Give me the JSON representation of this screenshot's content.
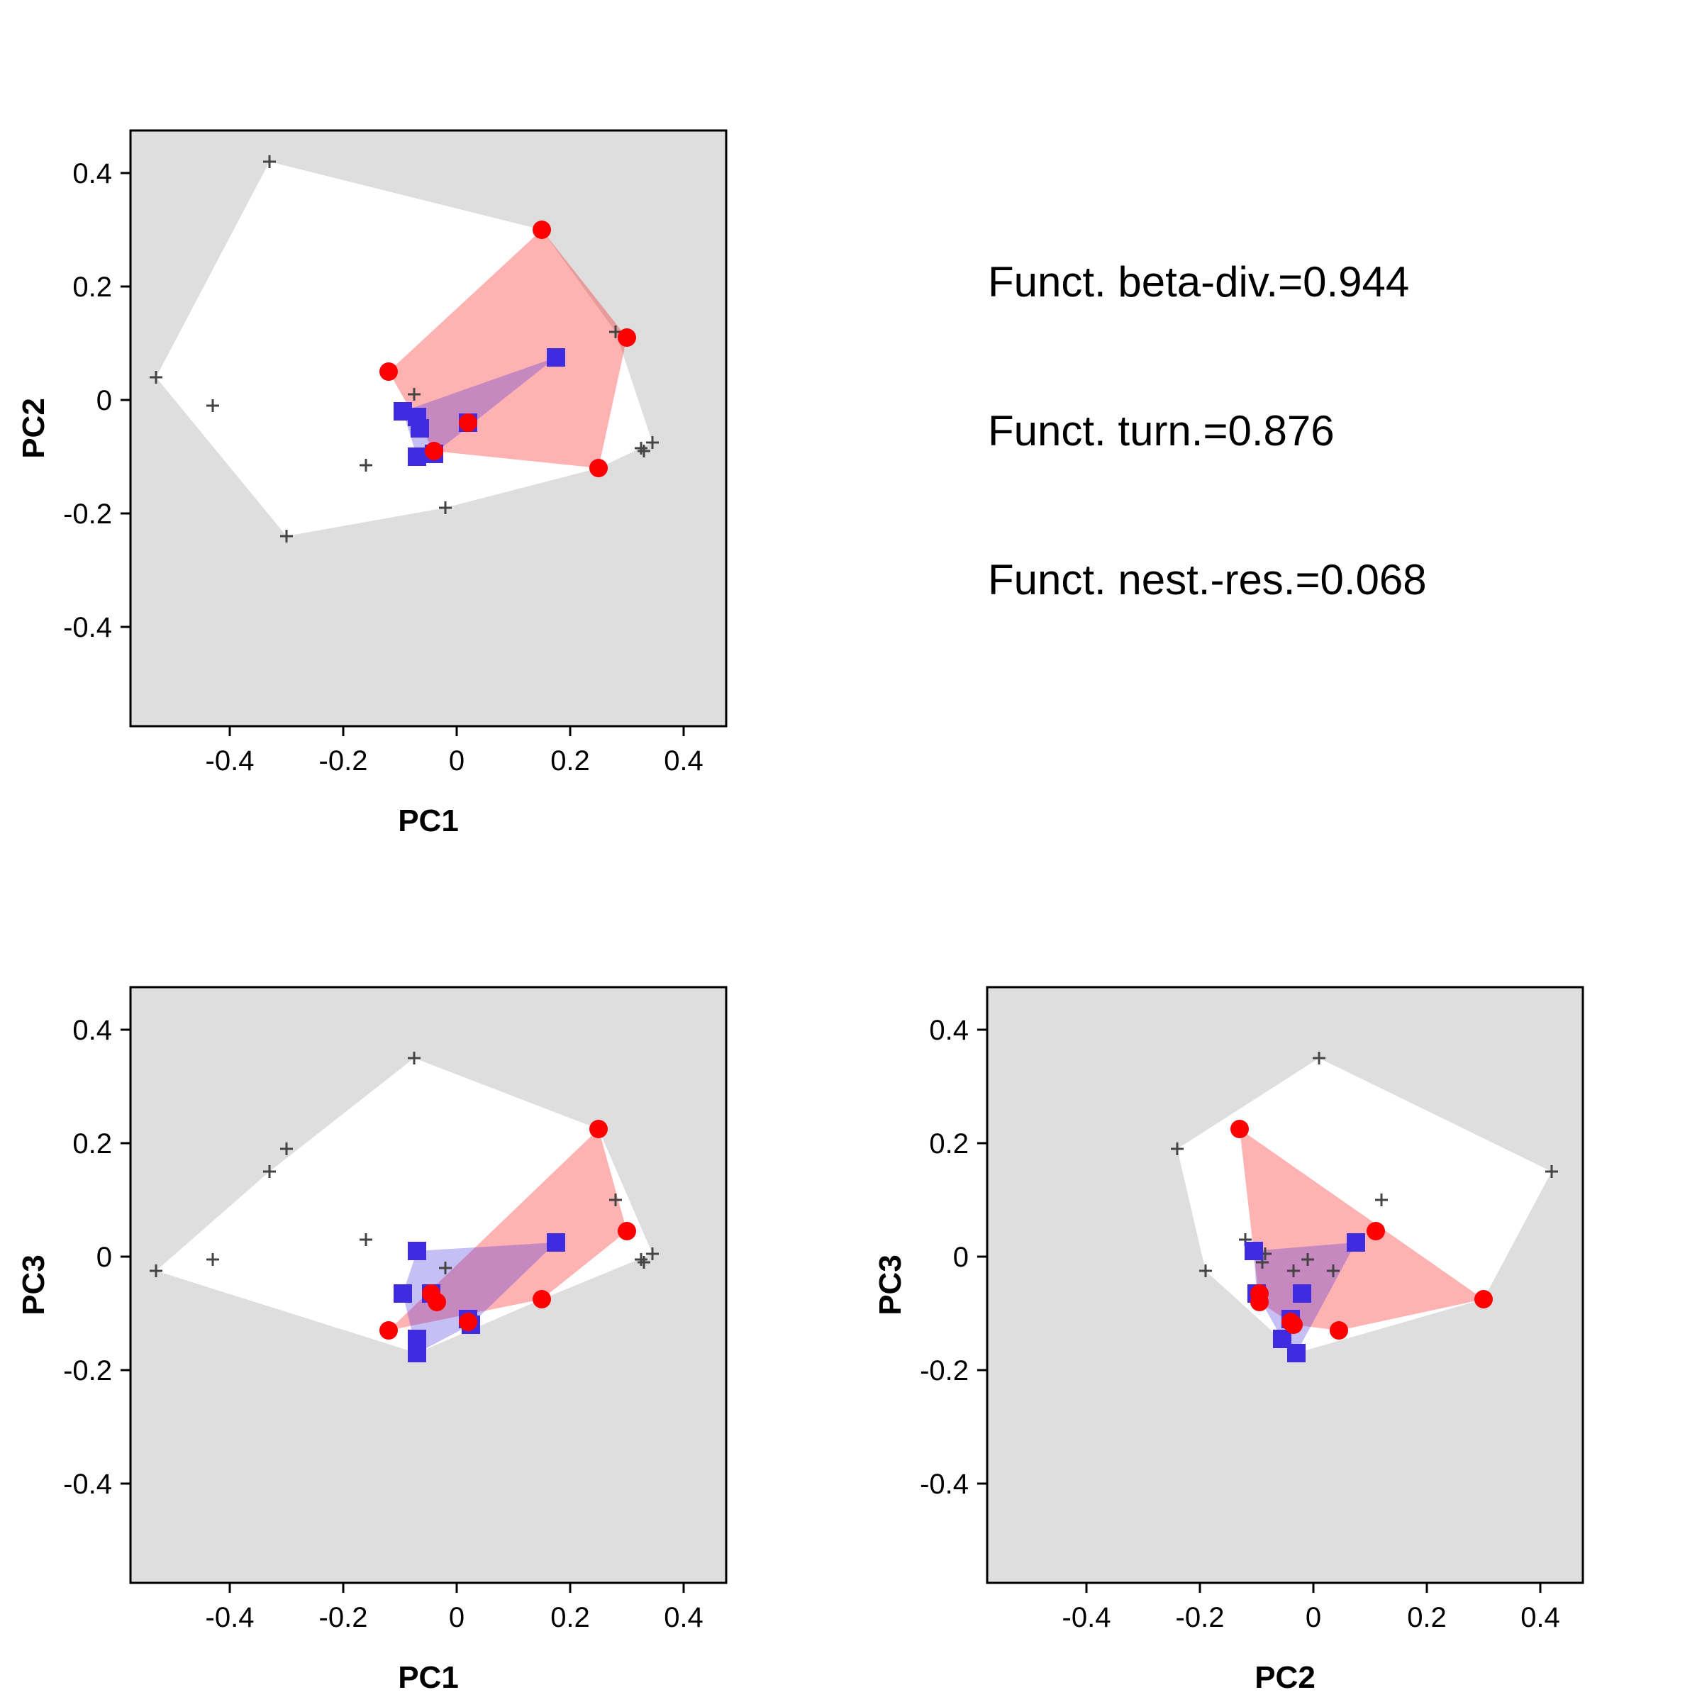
{
  "colors": {
    "panel_background": "#dedede",
    "global_hull": "#ffffff",
    "community_1": "#ff0000",
    "community_1_hull": "#f9a3a5",
    "community_2": "#3f2be0",
    "community_2_hull": "#b4b2f2",
    "overlap_hull": "#c2729b",
    "species_marker": "#444444"
  },
  "stats": {
    "beta_div": "Funct. beta-div.=0.944",
    "turnover": "Funct. turn.=0.876",
    "nestedness": "Funct. nest.-res.=0.068"
  },
  "chart_data": [
    {
      "type": "scatter",
      "xlabel": "PC1",
      "ylabel": "PC2",
      "xlim": [
        -0.575,
        0.475
      ],
      "ylim": [
        -0.575,
        0.475
      ],
      "xticks": [
        -0.4,
        -0.2,
        0,
        0.2,
        0.4
      ],
      "yticks": [
        -0.4,
        -0.2,
        0,
        0.2,
        0.4
      ],
      "tick_labels": [
        "-0.4",
        "-0.2",
        "0",
        "0.2",
        "0.4"
      ],
      "species": [
        [
          -0.33,
          0.42
        ],
        [
          -0.53,
          0.04
        ],
        [
          -0.43,
          -0.01
        ],
        [
          -0.3,
          -0.24
        ],
        [
          -0.16,
          -0.115
        ],
        [
          -0.02,
          -0.19
        ],
        [
          -0.075,
          0.01
        ],
        [
          0.28,
          0.12
        ],
        [
          0.325,
          -0.085
        ],
        [
          0.33,
          -0.09
        ],
        [
          0.345,
          -0.075
        ],
        [
          0.15,
          0.3
        ],
        [
          0.3,
          0.11
        ],
        [
          0.25,
          -0.12
        ]
      ],
      "global_hull": [
        [
          -0.33,
          0.42
        ],
        [
          0.15,
          0.3
        ],
        [
          0.28,
          0.12
        ],
        [
          0.345,
          -0.075
        ],
        [
          0.25,
          -0.12
        ],
        [
          -0.02,
          -0.19
        ],
        [
          -0.3,
          -0.24
        ],
        [
          -0.53,
          0.04
        ]
      ],
      "community_1": [
        [
          -0.12,
          0.05
        ],
        [
          0.15,
          0.3
        ],
        [
          0.3,
          0.11
        ],
        [
          0.25,
          -0.12
        ],
        [
          -0.04,
          -0.09
        ],
        [
          0.02,
          -0.04
        ]
      ],
      "community_1_hull": [
        [
          -0.12,
          0.05
        ],
        [
          0.15,
          0.3
        ],
        [
          0.3,
          0.11
        ],
        [
          0.25,
          -0.12
        ],
        [
          -0.04,
          -0.09
        ]
      ],
      "community_2": [
        [
          0.175,
          0.075
        ],
        [
          -0.095,
          -0.02
        ],
        [
          -0.07,
          -0.03
        ],
        [
          -0.065,
          -0.05
        ],
        [
          0.02,
          -0.04
        ],
        [
          -0.04,
          -0.095
        ],
        [
          -0.07,
          -0.1
        ]
      ],
      "community_2_hull": [
        [
          -0.095,
          -0.02
        ],
        [
          0.175,
          0.075
        ],
        [
          -0.04,
          -0.095
        ],
        [
          -0.07,
          -0.1
        ]
      ]
    },
    {
      "type": "scatter",
      "xlabel": "PC1",
      "ylabel": "PC3",
      "xlim": [
        -0.575,
        0.475
      ],
      "ylim": [
        -0.575,
        0.475
      ],
      "xticks": [
        -0.4,
        -0.2,
        0,
        0.2,
        0.4
      ],
      "yticks": [
        -0.4,
        -0.2,
        0,
        0.2,
        0.4
      ],
      "tick_labels": [
        "-0.4",
        "-0.2",
        "0",
        "0.2",
        "0.4"
      ],
      "species": [
        [
          -0.075,
          0.35
        ],
        [
          -0.3,
          0.19
        ],
        [
          -0.33,
          0.15
        ],
        [
          -0.53,
          -0.025
        ],
        [
          -0.43,
          -0.005
        ],
        [
          -0.16,
          0.03
        ],
        [
          -0.02,
          -0.02
        ],
        [
          0.28,
          0.1
        ],
        [
          0.325,
          -0.005
        ],
        [
          0.33,
          -0.01
        ],
        [
          0.345,
          0.005
        ],
        [
          0.25,
          0.225
        ],
        [
          0.3,
          0.045
        ],
        [
          0.15,
          -0.075
        ]
      ],
      "global_hull": [
        [
          -0.075,
          0.35
        ],
        [
          0.25,
          0.225
        ],
        [
          0.345,
          0.005
        ],
        [
          0.15,
          -0.075
        ],
        [
          -0.07,
          -0.17
        ],
        [
          -0.53,
          -0.025
        ],
        [
          -0.33,
          0.15
        ]
      ],
      "community_1": [
        [
          0.25,
          0.225
        ],
        [
          0.3,
          0.045
        ],
        [
          0.15,
          -0.075
        ],
        [
          -0.12,
          -0.13
        ],
        [
          -0.045,
          -0.065
        ],
        [
          -0.035,
          -0.08
        ],
        [
          0.02,
          -0.115
        ]
      ],
      "community_1_hull": [
        [
          0.25,
          0.225
        ],
        [
          0.3,
          0.045
        ],
        [
          0.15,
          -0.075
        ],
        [
          -0.12,
          -0.13
        ]
      ],
      "community_2": [
        [
          -0.07,
          0.01
        ],
        [
          0.175,
          0.025
        ],
        [
          -0.095,
          -0.065
        ],
        [
          -0.045,
          -0.065
        ],
        [
          0.02,
          -0.11
        ],
        [
          0.025,
          -0.12
        ],
        [
          -0.07,
          -0.145
        ],
        [
          -0.07,
          -0.17
        ]
      ],
      "community_2_hull": [
        [
          -0.07,
          0.01
        ],
        [
          0.175,
          0.025
        ],
        [
          0.025,
          -0.12
        ],
        [
          -0.07,
          -0.17
        ],
        [
          -0.095,
          -0.065
        ]
      ]
    },
    {
      "type": "scatter",
      "xlabel": "PC2",
      "ylabel": "PC3",
      "xlim": [
        -0.575,
        0.475
      ],
      "ylim": [
        -0.575,
        0.475
      ],
      "xticks": [
        -0.4,
        -0.2,
        0,
        0.2,
        0.4
      ],
      "yticks": [
        -0.4,
        -0.2,
        0,
        0.2,
        0.4
      ],
      "tick_labels": [
        "-0.4",
        "-0.2",
        "0",
        "0.2",
        "0.4"
      ],
      "species": [
        [
          0.01,
          0.35
        ],
        [
          -0.24,
          0.19
        ],
        [
          0.42,
          0.15
        ],
        [
          -0.19,
          -0.025
        ],
        [
          -0.12,
          0.03
        ],
        [
          -0.085,
          0.005
        ],
        [
          0.12,
          0.1
        ],
        [
          -0.01,
          -0.005
        ],
        [
          -0.035,
          -0.025
        ],
        [
          -0.09,
          -0.01
        ],
        [
          0.035,
          -0.025
        ],
        [
          -0.13,
          0.225
        ],
        [
          0.11,
          0.045
        ],
        [
          0.3,
          -0.075
        ]
      ],
      "global_hull": [
        [
          0.01,
          0.35
        ],
        [
          0.42,
          0.15
        ],
        [
          0.3,
          -0.075
        ],
        [
          -0.03,
          -0.17
        ],
        [
          -0.19,
          -0.025
        ],
        [
          -0.24,
          0.19
        ]
      ],
      "community_1": [
        [
          -0.13,
          0.225
        ],
        [
          0.11,
          0.045
        ],
        [
          0.3,
          -0.075
        ],
        [
          0.045,
          -0.13
        ],
        [
          -0.095,
          -0.065
        ],
        [
          -0.095,
          -0.08
        ],
        [
          -0.04,
          -0.115
        ],
        [
          -0.035,
          -0.12
        ]
      ],
      "community_1_hull": [
        [
          -0.13,
          0.225
        ],
        [
          0.3,
          -0.075
        ],
        [
          0.045,
          -0.13
        ],
        [
          -0.035,
          -0.12
        ],
        [
          -0.095,
          -0.08
        ]
      ],
      "community_2": [
        [
          -0.105,
          0.01
        ],
        [
          0.075,
          0.025
        ],
        [
          -0.02,
          -0.065
        ],
        [
          -0.1,
          -0.065
        ],
        [
          -0.04,
          -0.11
        ],
        [
          -0.055,
          -0.145
        ],
        [
          -0.03,
          -0.17
        ]
      ],
      "community_2_hull": [
        [
          -0.105,
          0.01
        ],
        [
          0.075,
          0.025
        ],
        [
          -0.03,
          -0.17
        ],
        [
          -0.055,
          -0.145
        ],
        [
          -0.1,
          -0.065
        ]
      ]
    }
  ]
}
